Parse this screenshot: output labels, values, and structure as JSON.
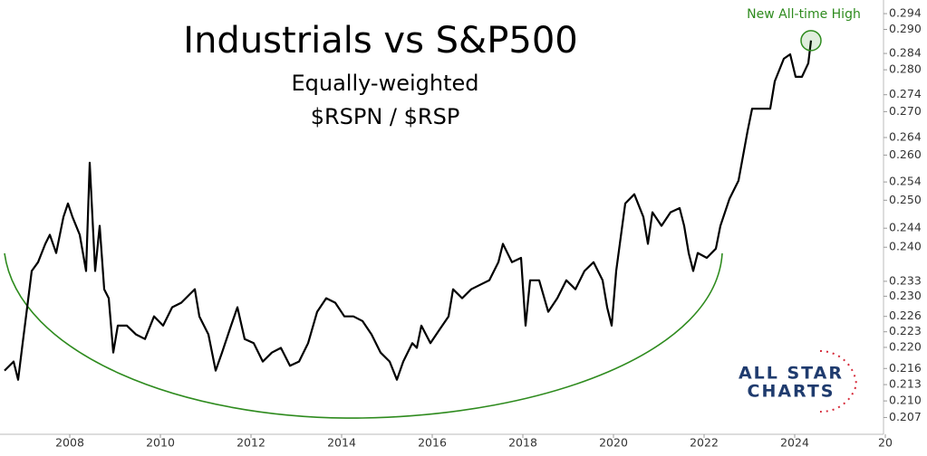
{
  "chart_data": {
    "type": "line",
    "title": "Industrials vs S&P500",
    "subtitle": [
      "Equally-weighted",
      "$RSPN / $RSP"
    ],
    "annotation": "New All-time High",
    "logo": [
      "ALL STAR",
      "CHARTS"
    ],
    "log_scale": true,
    "grid": false,
    "annotation_color": "#2e8b1e",
    "xlim": [
      2006.5,
      2026
    ],
    "xticks": [
      2008,
      2010,
      2012,
      2014,
      2016,
      2018,
      2020,
      2022,
      2024,
      {
        "value": 2026,
        "label": "20"
      }
    ],
    "ylim": [
      0.204,
      0.2975
    ],
    "yticks": [
      0.294,
      {
        "value": 0.29,
        "label": "0.290"
      },
      0.284,
      {
        "value": 0.28,
        "label": "0.280"
      },
      0.274,
      {
        "value": 0.27,
        "label": "0.270"
      },
      0.264,
      {
        "value": 0.26,
        "label": "0.260"
      },
      0.254,
      {
        "value": 0.25,
        "label": "0.250"
      },
      0.244,
      {
        "value": 0.24,
        "label": "0.240"
      },
      0.233,
      {
        "value": 0.23,
        "label": "0.230"
      },
      0.226,
      0.223,
      {
        "value": 0.22,
        "label": "0.220"
      },
      0.216,
      0.213,
      {
        "value": 0.21,
        "label": "0.210"
      },
      0.207
    ],
    "x": [
      2006.56,
      2006.76,
      2006.86,
      2006.96,
      2007.06,
      2007.16,
      2007.3,
      2007.46,
      2007.56,
      2007.7,
      2007.86,
      2007.96,
      2008.06,
      2008.22,
      2008.36,
      2008.44,
      2008.5,
      2008.56,
      2008.66,
      2008.76,
      2008.86,
      2008.96,
      2009.06,
      2009.26,
      2009.46,
      2009.66,
      2009.86,
      2010.06,
      2010.26,
      2010.46,
      2010.66,
      2010.76,
      2010.86,
      2011.06,
      2011.22,
      2011.36,
      2011.56,
      2011.7,
      2011.86,
      2012.06,
      2012.26,
      2012.46,
      2012.66,
      2012.86,
      2013.06,
      2013.26,
      2013.46,
      2013.66,
      2013.86,
      2014.06,
      2014.26,
      2014.46,
      2014.66,
      2014.86,
      2015.06,
      2015.22,
      2015.36,
      2015.56,
      2015.66,
      2015.76,
      2015.96,
      2016.16,
      2016.36,
      2016.46,
      2016.66,
      2016.86,
      2017.06,
      2017.26,
      2017.46,
      2017.56,
      2017.76,
      2017.96,
      2018.06,
      2018.16,
      2018.36,
      2018.56,
      2018.76,
      2018.96,
      2019.16,
      2019.36,
      2019.56,
      2019.76,
      2019.86,
      2019.96,
      2020.06,
      2020.26,
      2020.46,
      2020.66,
      2020.76,
      2020.86,
      2021.06,
      2021.26,
      2021.46,
      2021.56,
      2021.66,
      2021.76,
      2021.86,
      2022.06,
      2022.26,
      2022.36,
      2022.56,
      2022.76,
      2022.96,
      2023.06,
      2023.26,
      2023.46,
      2023.56,
      2023.76,
      2023.9,
      2024.02,
      2024.16,
      2024.3,
      2024.36
    ],
    "series": [
      {
        "name": "$RSPN / $RSP",
        "color": "#000000",
        "values": [
          0.2156,
          0.2173,
          0.2139,
          0.2208,
          0.2278,
          0.2351,
          0.2369,
          0.2407,
          0.2426,
          0.2388,
          0.2464,
          0.2493,
          0.2464,
          0.2426,
          0.2351,
          0.2583,
          0.2464,
          0.2351,
          0.2445,
          0.2314,
          0.2296,
          0.219,
          0.2242,
          0.2242,
          0.2225,
          0.2216,
          0.226,
          0.2242,
          0.2278,
          0.2287,
          0.2305,
          0.2314,
          0.226,
          0.2225,
          0.2156,
          0.219,
          0.2242,
          0.2278,
          0.2216,
          0.2208,
          0.2173,
          0.219,
          0.2199,
          0.2165,
          0.2173,
          0.2208,
          0.2269,
          0.2296,
          0.2287,
          0.226,
          0.226,
          0.2251,
          0.2225,
          0.219,
          0.2173,
          0.2139,
          0.2173,
          0.2208,
          0.2199,
          0.2242,
          0.2208,
          0.2234,
          0.226,
          0.2314,
          0.2296,
          0.2314,
          0.2323,
          0.2332,
          0.2369,
          0.2407,
          0.2369,
          0.2378,
          0.2242,
          0.2332,
          0.2332,
          0.2269,
          0.2296,
          0.2332,
          0.2314,
          0.2351,
          0.2369,
          0.2332,
          0.2278,
          0.2242,
          0.2351,
          0.2493,
          0.2513,
          0.2464,
          0.2407,
          0.2474,
          0.2445,
          0.2474,
          0.2483,
          0.2445,
          0.2388,
          0.2351,
          0.2388,
          0.2378,
          0.2397,
          0.2445,
          0.2503,
          0.2543,
          0.2655,
          0.2707,
          0.2707,
          0.2707,
          0.2772,
          0.2827,
          0.2838,
          0.2783,
          0.2783,
          0.2816,
          0.2872
        ]
      }
    ]
  }
}
